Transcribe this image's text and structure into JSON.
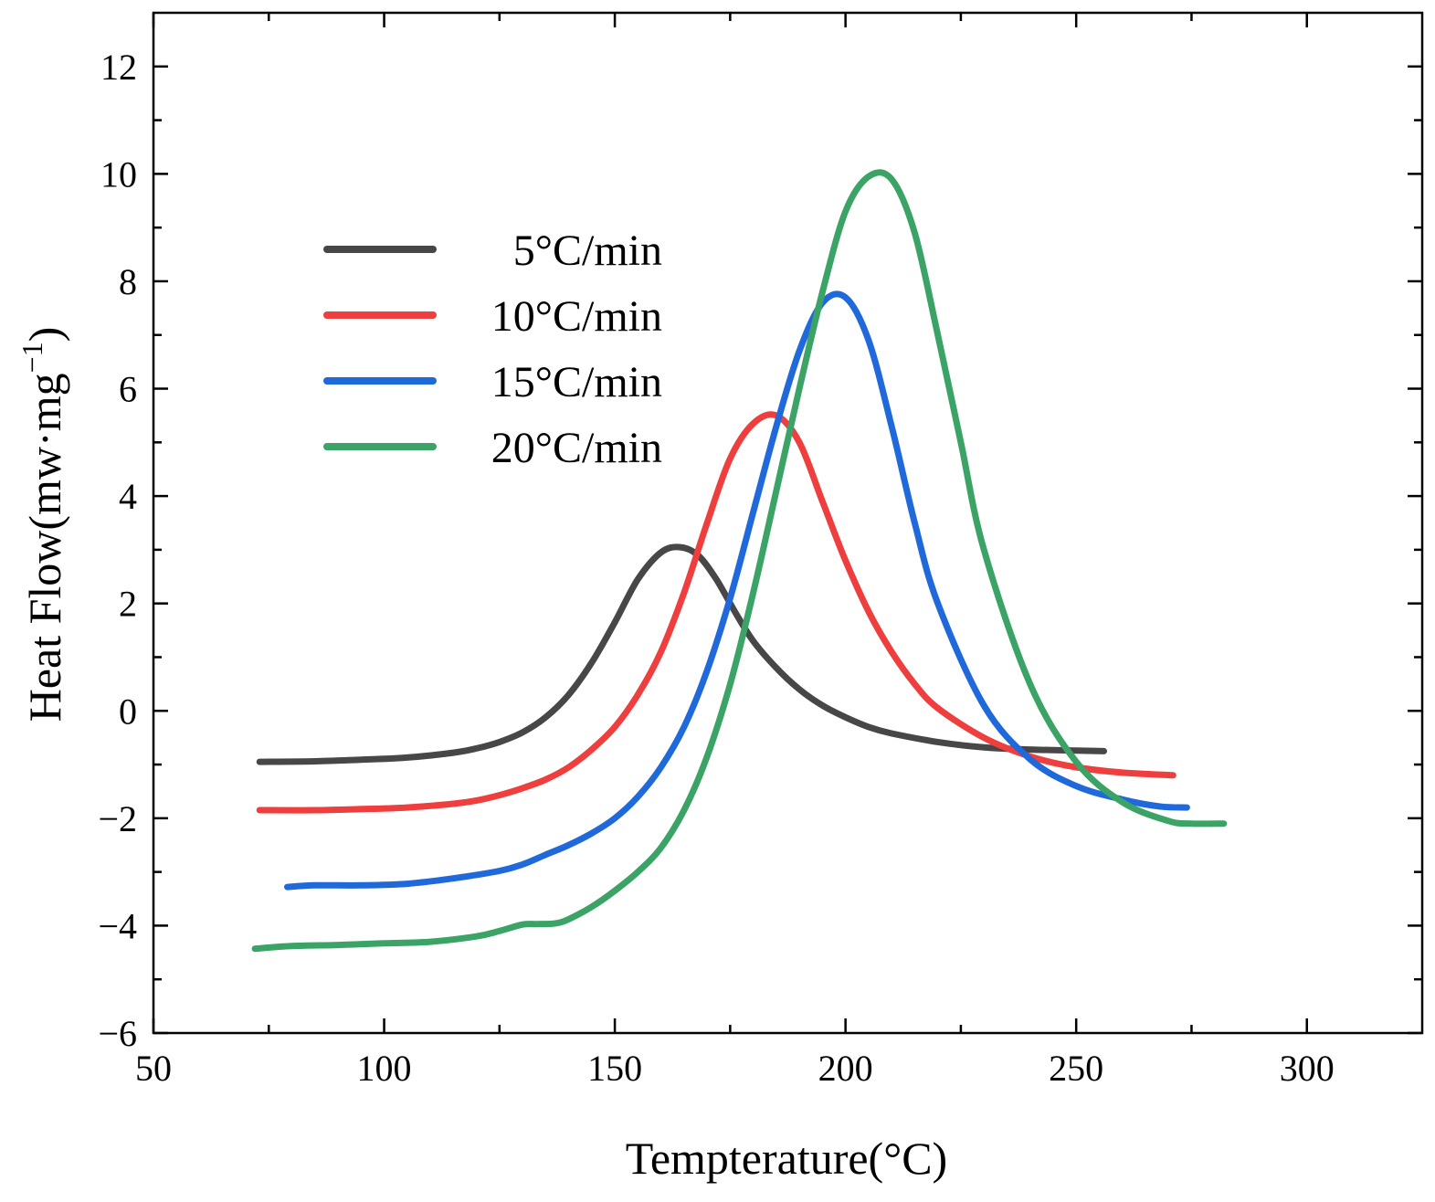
{
  "chart_data": {
    "type": "line",
    "title": "",
    "xlabel": "Tempterature(°C)",
    "ylabel": "Heat Flow(mw·mg",
    "ylabel_sup": "−1",
    "ylabel_close": ")",
    "xlim": [
      50,
      325
    ],
    "ylim": [
      -6,
      13
    ],
    "x_ticks": [
      50,
      100,
      150,
      200,
      250,
      300
    ],
    "x_tick_labels": [
      "50",
      "100",
      "150",
      "200",
      "250",
      "300"
    ],
    "y_ticks": [
      -6,
      -4,
      -2,
      0,
      2,
      4,
      6,
      8,
      10,
      12
    ],
    "y_tick_labels": [
      "−6",
      "−4",
      "−2",
      "0",
      "2",
      "4",
      "6",
      "8",
      "10",
      "12"
    ],
    "grid": false,
    "legend_position": "top-left",
    "series": [
      {
        "name": "5°C/min",
        "color": "#474747",
        "x": [
          73,
          85,
          95,
          105,
          115,
          120,
          125,
          130,
          135,
          140,
          145,
          150,
          155,
          160,
          164,
          168,
          172,
          176,
          180,
          185,
          190,
          195,
          200,
          205,
          210,
          220,
          230,
          240,
          250,
          256
        ],
        "y": [
          -0.95,
          -0.94,
          -0.91,
          -0.87,
          -0.78,
          -0.7,
          -0.58,
          -0.4,
          -0.12,
          0.3,
          0.9,
          1.65,
          2.45,
          2.95,
          3.05,
          2.9,
          2.45,
          1.85,
          1.3,
          0.8,
          0.4,
          0.1,
          -0.12,
          -0.3,
          -0.42,
          -0.58,
          -0.68,
          -0.72,
          -0.74,
          -0.75
        ]
      },
      {
        "name": "10°C/min",
        "color": "#EE3E3E",
        "x": [
          73,
          85,
          95,
          105,
          115,
          120,
          125,
          130,
          135,
          140,
          145,
          150,
          155,
          160,
          165,
          170,
          175,
          180,
          185,
          190,
          195,
          200,
          205,
          210,
          215,
          220,
          230,
          240,
          250,
          260,
          271
        ],
        "y": [
          -1.85,
          -1.85,
          -1.83,
          -1.8,
          -1.73,
          -1.67,
          -1.57,
          -1.44,
          -1.28,
          -1.05,
          -0.72,
          -0.3,
          0.3,
          1.1,
          2.2,
          3.5,
          4.7,
          5.35,
          5.5,
          5.0,
          3.9,
          2.8,
          1.85,
          1.1,
          0.5,
          0.05,
          -0.5,
          -0.85,
          -1.05,
          -1.15,
          -1.2
        ]
      },
      {
        "name": "15°C/min",
        "color": "#1F69DA",
        "x": [
          79,
          85,
          95,
          105,
          115,
          125,
          130,
          135,
          140,
          145,
          150,
          155,
          160,
          165,
          170,
          175,
          180,
          185,
          190,
          195,
          200,
          205,
          210,
          215,
          220,
          230,
          240,
          250,
          260,
          268,
          274
        ],
        "y": [
          -3.28,
          -3.25,
          -3.25,
          -3.22,
          -3.12,
          -2.98,
          -2.86,
          -2.68,
          -2.5,
          -2.28,
          -2.0,
          -1.6,
          -1.05,
          -0.3,
          0.75,
          2.1,
          3.7,
          5.3,
          6.7,
          7.6,
          7.7,
          6.9,
          5.3,
          3.5,
          2.0,
          0.1,
          -0.9,
          -1.4,
          -1.65,
          -1.78,
          -1.8
        ]
      },
      {
        "name": "20°C/min",
        "color": "#3BA366",
        "x": [
          72,
          80,
          90,
          100,
          110,
          120,
          125,
          130,
          133,
          137,
          140,
          145,
          150,
          155,
          160,
          165,
          170,
          175,
          180,
          185,
          190,
          195,
          200,
          205,
          210,
          215,
          220,
          225,
          230,
          240,
          250,
          260,
          270,
          275,
          282
        ],
        "y": [
          -4.43,
          -4.38,
          -4.36,
          -4.33,
          -4.3,
          -4.2,
          -4.1,
          -3.98,
          -3.97,
          -3.96,
          -3.88,
          -3.65,
          -3.35,
          -3.0,
          -2.55,
          -1.85,
          -0.85,
          0.5,
          2.2,
          4.1,
          6.0,
          7.8,
          9.3,
          9.95,
          9.9,
          8.9,
          7.0,
          5.0,
          3.0,
          0.5,
          -0.95,
          -1.7,
          -2.05,
          -2.1,
          -2.1
        ]
      }
    ]
  }
}
